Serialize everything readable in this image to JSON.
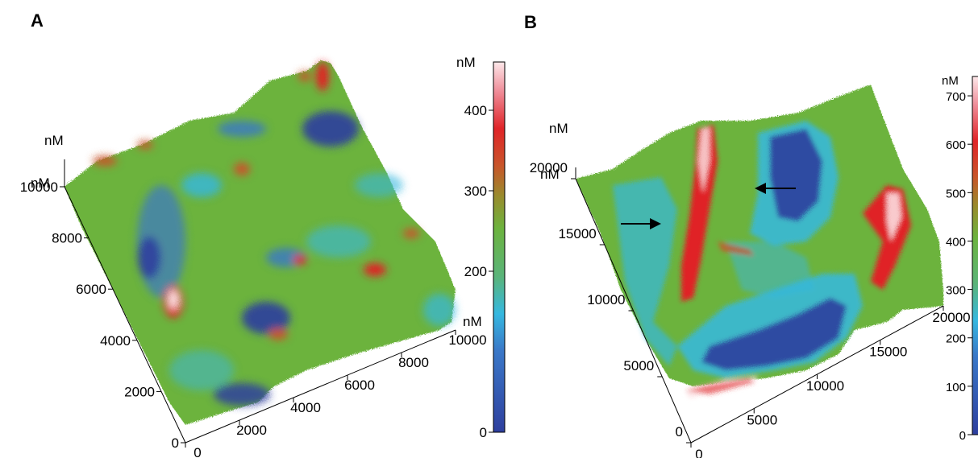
{
  "panels": [
    {
      "label": "A",
      "z_unit_label": "nM",
      "corner_unit_label": "nM",
      "x_axis": {
        "unit_label": "nM",
        "ticks": [
          "0",
          "2000",
          "4000",
          "6000",
          "8000",
          "10000"
        ]
      },
      "y_axis": {
        "ticks": [
          "0",
          "2000",
          "4000",
          "6000",
          "8000",
          "10000"
        ]
      },
      "colorbar": {
        "unit_label": "nM",
        "ticks": [
          "0",
          "200",
          "300",
          "400"
        ],
        "range": [
          0,
          460
        ]
      }
    },
    {
      "label": "B",
      "z_unit_label": "nM",
      "corner_unit_label": "nM",
      "x_axis": {
        "ticks": [
          "0",
          "5000",
          "10000",
          "15000",
          "20000"
        ]
      },
      "y_axis": {
        "ticks": [
          "0",
          "5000",
          "10000",
          "15000",
          "20000"
        ]
      },
      "colorbar": {
        "unit_label": "nM",
        "ticks": [
          "0",
          "100",
          "200",
          "300",
          "400",
          "500",
          "600",
          "700"
        ],
        "range": [
          0,
          740
        ]
      }
    }
  ],
  "colors": {
    "low": "#2e3f9e",
    "mid_low": "#35b8e0",
    "mid": "#6cb33e",
    "high": "#e02428",
    "peak": "#fde8ea"
  }
}
